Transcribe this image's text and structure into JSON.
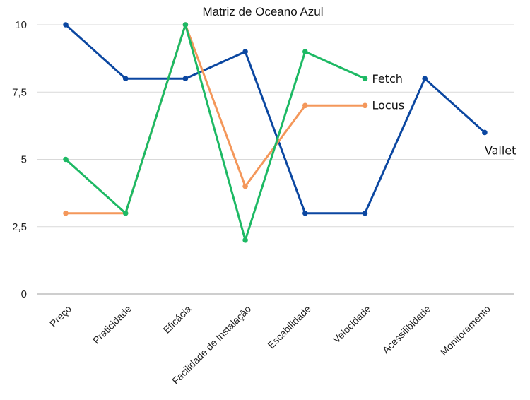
{
  "chart_data": {
    "type": "line",
    "title": "Matriz de Oceano Azul",
    "xlabel": "",
    "ylabel": "",
    "categories": [
      "Preço",
      "Praticidade",
      "Eficácia",
      "Facilidade de Instalação",
      "Escabilidade",
      "Velocidade",
      "Acessilibidade",
      "Monitoramento"
    ],
    "y_ticks": [
      "0",
      "2,5",
      "5",
      "7,5",
      "10"
    ],
    "ylim": [
      0,
      10
    ],
    "grid": true,
    "legend": "end-of-line labels",
    "series": [
      {
        "name": "Vallet",
        "color": "#0b47a1",
        "values": [
          10,
          8,
          8,
          9,
          3,
          3,
          8,
          6
        ]
      },
      {
        "name": "Locus",
        "color": "#f4975a",
        "values": [
          3,
          3,
          10,
          4,
          7,
          7,
          null,
          null
        ]
      },
      {
        "name": "Fetch",
        "color": "#1db964",
        "values": [
          5,
          3,
          10,
          2,
          9,
          8,
          null,
          null
        ]
      }
    ]
  }
}
